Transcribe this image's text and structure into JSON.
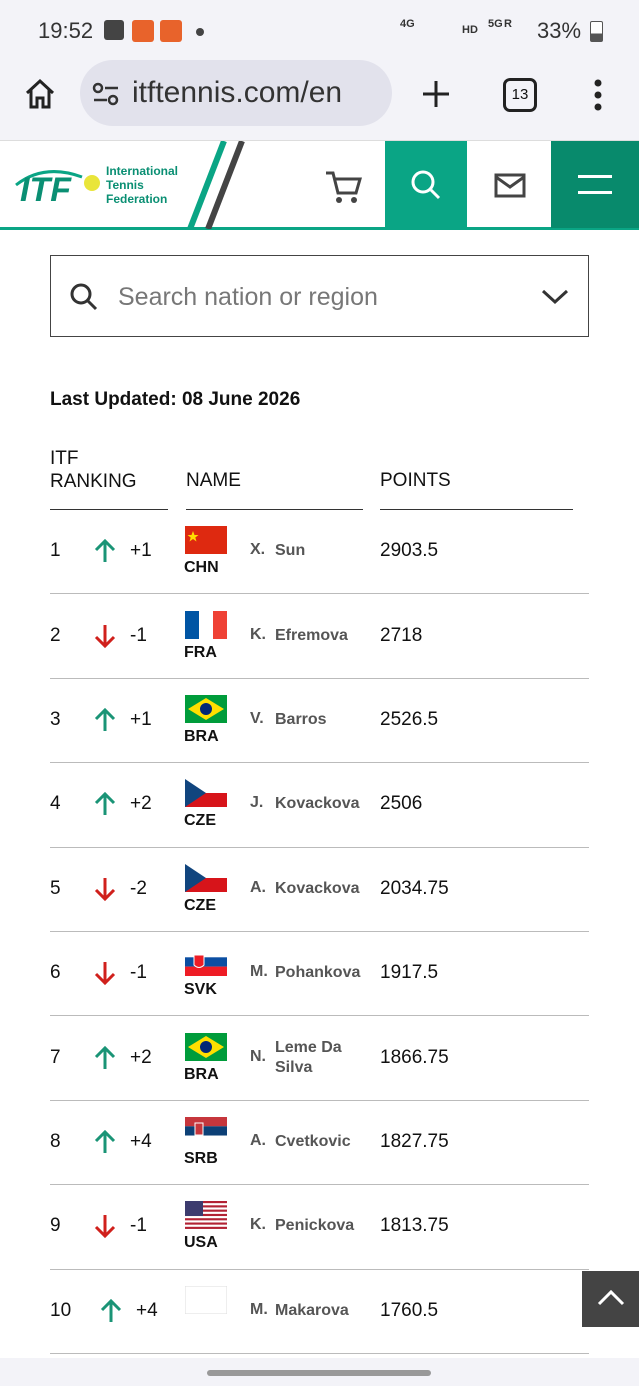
{
  "status": {
    "time": "19:52",
    "network": [
      "4G",
      "HD",
      "5G",
      "R"
    ],
    "battery": "33%"
  },
  "browser": {
    "url": "itftennis.com/en",
    "tabs": "13"
  },
  "header": {
    "logo": "ITF",
    "org": [
      "International",
      "Tennis",
      "Federation"
    ]
  },
  "search": {
    "placeholder": "Search nation or region"
  },
  "updated": "Last Updated: 08 June 2026",
  "table": {
    "headers": {
      "rank": [
        "ITF",
        "RANKING"
      ],
      "name": "NAME",
      "points": "POINTS"
    },
    "rows": [
      {
        "rank": 1,
        "change": "+1",
        "nation": "CHN",
        "initial": "X.",
        "surname": "Sun",
        "points": 2903.5
      },
      {
        "rank": 2,
        "change": "-1",
        "nation": "FRA",
        "initial": "K.",
        "surname": "Efremova",
        "points": 2718
      },
      {
        "rank": 3,
        "change": "+1",
        "nation": "BRA",
        "initial": "V.",
        "surname": "Barros",
        "points": 2526.5
      },
      {
        "rank": 4,
        "change": "+2",
        "nation": "CZE",
        "initial": "J.",
        "surname": "Kovackova",
        "points": 2506
      },
      {
        "rank": 5,
        "change": "-2",
        "nation": "CZE",
        "initial": "A.",
        "surname": "Kovackova",
        "points": 2034.75
      },
      {
        "rank": 6,
        "change": "-1",
        "nation": "SVK",
        "initial": "M.",
        "surname": "Pohankova",
        "points": 1917.5
      },
      {
        "rank": 7,
        "change": "+2",
        "nation": "BRA",
        "initial": "N.",
        "surname": "Leme Da Silva",
        "points": 1866.75
      },
      {
        "rank": 8,
        "change": "+4",
        "nation": "SRB",
        "initial": "A.",
        "surname": "Cvetkovic",
        "points": 1827.75
      },
      {
        "rank": 9,
        "change": "-1",
        "nation": "USA",
        "initial": "K.",
        "surname": "Penickova",
        "points": 1813.75
      },
      {
        "rank": 10,
        "change": "+4",
        "nation": "",
        "initial": "M.",
        "surname": "Makarova",
        "points": 1760.5
      }
    ]
  }
}
